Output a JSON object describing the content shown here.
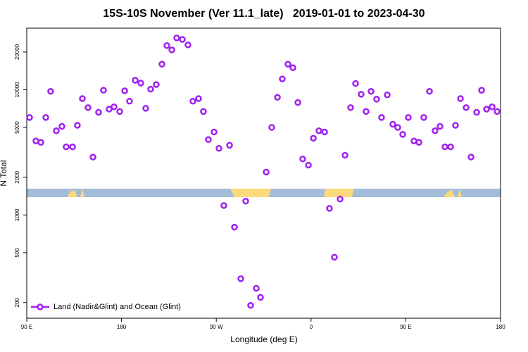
{
  "chart_data": {
    "type": "scatter",
    "title": "15S-10S November (Ver 11.1_late)   2019-01-01 to 2023-04-30",
    "x_label": "Longitude (deg E)",
    "y_label": "N Total",
    "xlim": [
      90,
      540
    ],
    "ylim": [
      150,
      31000
    ],
    "log_y": true,
    "legend_position": "bottom-left",
    "xticks": [
      {
        "value": 90,
        "label": "90 E"
      },
      180,
      {
        "value": 270,
        "label": "90 W"
      },
      {
        "value": 360,
        "label": "0"
      },
      {
        "value": 450,
        "label": "90 E"
      },
      {
        "value": 540,
        "label": "180"
      }
    ],
    "yticks": [
      200,
      500,
      1000,
      2000,
      5000,
      10000,
      20000
    ],
    "series": [
      {
        "name": "Land (Nadir&Glint) and Ocean (Glint)",
        "color": "#a020f0",
        "x": [
          92.7,
          98.7,
          103.4,
          108.1,
          112.7,
          118.1,
          123.4,
          127.4,
          133.5,
          138.1,
          142.8,
          148.2,
          152.9,
          158.2,
          162.9,
          168.2,
          172.9,
          178.3,
          183,
          187.6,
          193,
          198.3,
          203,
          207.7,
          213,
          218.4,
          223.1,
          227.8,
          232.4,
          237.8,
          243.1,
          247.8,
          253.2,
          257.8,
          262.5,
          267.9,
          272.6,
          277.2,
          282.6,
          287.3,
          293.3,
          298,
          302.6,
          308,
          312,
          317.4,
          322.7,
          328.1,
          332.7,
          338.1,
          342.8,
          347.5,
          352.1,
          357.5,
          362.2,
          367.5,
          372.9,
          377.5,
          382.2,
          387.6,
          392.3,
          397.6,
          402.3,
          407.6,
          412.3,
          417,
          422.3,
          427,
          432.4,
          437.7,
          442.4,
          447.1,
          452.4,
          457.8,
          462.5,
          467.1,
          472.5,
          477.8,
          482.5,
          487.2,
          492.6,
          497.2,
          501.9,
          507.3,
          512,
          517.3,
          522,
          526.7,
          532,
          536.7
        ],
        "values": [
          6000,
          3900,
          3800,
          6000,
          9700,
          4700,
          5100,
          3500,
          3500,
          5200,
          8500,
          7200,
          2900,
          6600,
          9900,
          7000,
          7300,
          6700,
          9800,
          8100,
          11900,
          11300,
          7100,
          10100,
          11000,
          16000,
          22500,
          20800,
          25900,
          25200,
          22800,
          8100,
          8500,
          6700,
          4000,
          4600,
          3400,
          1190,
          3600,
          800,
          310,
          1290,
          190,
          260,
          220,
          2200,
          5000,
          8700,
          12200,
          16000,
          15000,
          7900,
          2800,
          2500,
          4100,
          4700,
          4600,
          1130,
          460,
          1340,
          3000,
          7200,
          11200,
          9200,
          6700,
          9700,
          8400,
          6000,
          9100,
          5300,
          5000,
          4400,
          6000,
          3900,
          3800,
          6000,
          9700,
          4700,
          5100,
          3500,
          3500,
          5200,
          8500,
          7200,
          2900,
          6600,
          9900,
          7000,
          7300,
          6700
        ]
      }
    ]
  }
}
